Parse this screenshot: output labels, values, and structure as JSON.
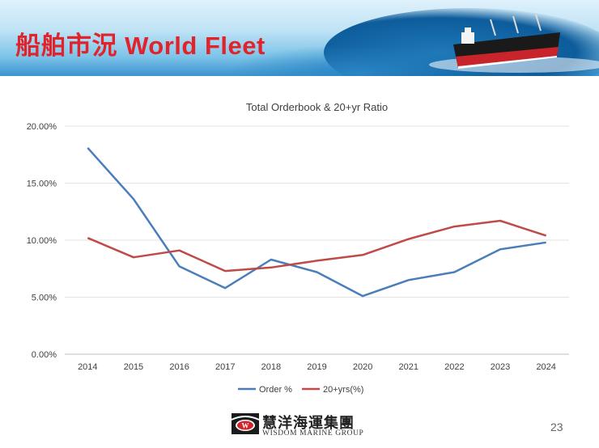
{
  "header": {
    "title": "船舶市況 World Fleet"
  },
  "chart_data": {
    "type": "line",
    "title": "Total Orderbook & 20+yr Ratio",
    "categories": [
      "2014",
      "2015",
      "2016",
      "2017",
      "2018",
      "2019",
      "2020",
      "2021",
      "2022",
      "2023",
      "2024"
    ],
    "series": [
      {
        "name": "Order %",
        "color": "#4a7ebb",
        "values": [
          18.1,
          13.6,
          7.7,
          5.8,
          8.3,
          7.2,
          5.1,
          6.5,
          7.2,
          9.2,
          9.8
        ]
      },
      {
        "name": "20+yrs(%)",
        "color": "#be4b48",
        "values": [
          10.2,
          8.5,
          9.1,
          7.3,
          7.6,
          8.2,
          8.7,
          10.1,
          11.2,
          11.7,
          10.4
        ]
      }
    ],
    "yticks": [
      "0.00%",
      "5.00%",
      "10.00%",
      "15.00%",
      "20.00%"
    ],
    "ylim": [
      0,
      20
    ],
    "grid": true,
    "legend": "bottom"
  },
  "footer": {
    "logo_cn": "慧洋海運集團",
    "logo_en": "WISDOM MARINE GROUP",
    "logo_mark": "W",
    "page_number": "23"
  }
}
